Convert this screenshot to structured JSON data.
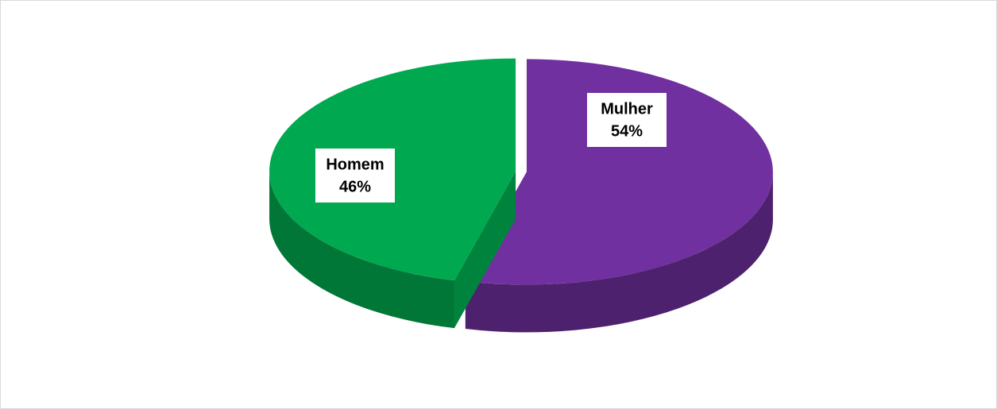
{
  "chart_data": {
    "type": "pie",
    "categories": [
      "Homem",
      "Mulher"
    ],
    "values": [
      46,
      54
    ],
    "value_labels": [
      "46%",
      "54%"
    ],
    "colors": [
      "#00a94f",
      "#7030a0"
    ],
    "start_angle": 0,
    "direction": "clockwise",
    "order": [
      1,
      0
    ]
  }
}
